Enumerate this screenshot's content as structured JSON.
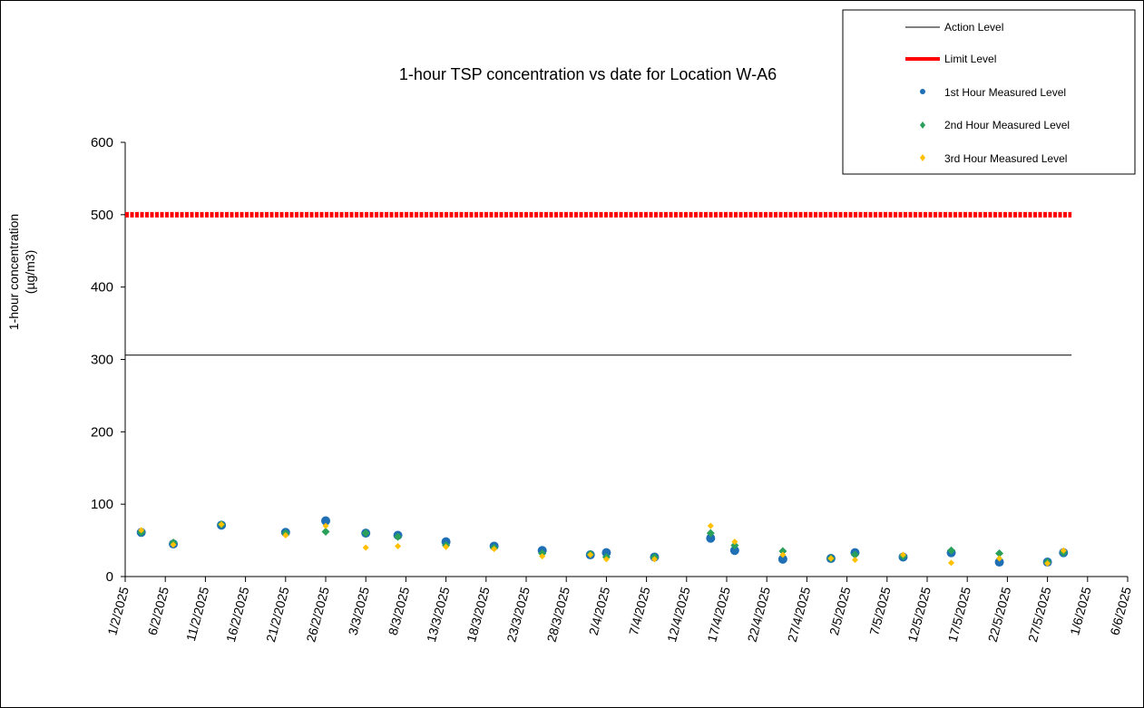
{
  "chart_data": {
    "type": "scatter",
    "title": "1-hour TSP concentration vs date for Location  W-A6",
    "xlabel": "",
    "ylabel_lines": [
      "1-hour concentration",
      "(µg/m3)"
    ],
    "ylim": [
      0,
      600
    ],
    "y_ticks": [
      0,
      100,
      200,
      300,
      400,
      500,
      600
    ],
    "y_tick_labels": [
      "0",
      "100",
      "200",
      "300",
      "400",
      "500",
      "600"
    ],
    "x_range": [
      "1/2/2025",
      "6/6/2025"
    ],
    "x_tick_labels": [
      "1/2/2025",
      "6/2/2025",
      "11/2/2025",
      "16/2/2025",
      "21/2/2025",
      "26/2/2025",
      "3/3/2025",
      "8/3/2025",
      "13/3/2025",
      "18/3/2025",
      "23/3/2025",
      "28/3/2025",
      "2/4/2025",
      "7/4/2025",
      "12/4/2025",
      "17/4/2025",
      "22/4/2025",
      "27/4/2025",
      "2/5/2025",
      "7/5/2025",
      "12/5/2025",
      "17/5/2025",
      "22/5/2025",
      "27/5/2025",
      "1/6/2025",
      "6/6/2025"
    ],
    "grid": false,
    "legend_position": "top-right",
    "reference_lines": [
      {
        "name": "Action Level",
        "value": 306,
        "x_end": "30/5/2025",
        "color": "#000000"
      },
      {
        "name": "Limit Level",
        "value": 500,
        "x_end": "30/5/2025",
        "color": "#ff0000"
      }
    ],
    "series": [
      {
        "name": "1st Hour Measured Level",
        "color": "#1f6fb5",
        "x": [
          "3/2/2025",
          "7/2/2025",
          "13/2/2025",
          "21/2/2025",
          "26/2/2025",
          "3/3/2025",
          "7/3/2025",
          "13/3/2025",
          "19/3/2025",
          "25/3/2025",
          "31/3/2025",
          "2/4/2025",
          "8/4/2025",
          "15/4/2025",
          "18/4/2025",
          "24/4/2025",
          "30/4/2025",
          "3/5/2025",
          "9/5/2025",
          "15/5/2025",
          "21/5/2025",
          "27/5/2025",
          "29/5/2025"
        ],
        "values": [
          61,
          45,
          71,
          61,
          77,
          60,
          57,
          48,
          42,
          36,
          30,
          33,
          27,
          53,
          36,
          24,
          25,
          33,
          27,
          33,
          20,
          20,
          33
        ]
      },
      {
        "name": "2nd Hour Measured Level",
        "color": "#2aa05a",
        "x": [
          "3/2/2025",
          "7/2/2025",
          "13/2/2025",
          "21/2/2025",
          "26/2/2025",
          "3/3/2025",
          "7/3/2025",
          "13/3/2025",
          "19/3/2025",
          "25/3/2025",
          "31/3/2025",
          "2/4/2025",
          "8/4/2025",
          "15/4/2025",
          "18/4/2025",
          "24/4/2025",
          "30/4/2025",
          "3/5/2025",
          "9/5/2025",
          "15/5/2025",
          "21/5/2025",
          "27/5/2025",
          "29/5/2025"
        ],
        "values": [
          61,
          47,
          72,
          60,
          62,
          60,
          55,
          43,
          40,
          32,
          31,
          27,
          27,
          60,
          43,
          35,
          25,
          30,
          28,
          36,
          32,
          20,
          33
        ]
      },
      {
        "name": "3rd Hour Measured Level",
        "color": "#ffc000",
        "x": [
          "3/2/2025",
          "7/2/2025",
          "13/2/2025",
          "21/2/2025",
          "26/2/2025",
          "3/3/2025",
          "7/3/2025",
          "13/3/2025",
          "19/3/2025",
          "25/3/2025",
          "31/3/2025",
          "2/4/2025",
          "8/4/2025",
          "15/4/2025",
          "18/4/2025",
          "24/4/2025",
          "30/4/2025",
          "3/5/2025",
          "9/5/2025",
          "15/5/2025",
          "21/5/2025",
          "27/5/2025",
          "29/5/2025"
        ],
        "values": [
          64,
          44,
          72,
          57,
          70,
          40,
          42,
          41,
          38,
          28,
          30,
          24,
          24,
          70,
          48,
          30,
          25,
          23,
          30,
          19,
          25,
          18,
          36
        ]
      }
    ]
  }
}
